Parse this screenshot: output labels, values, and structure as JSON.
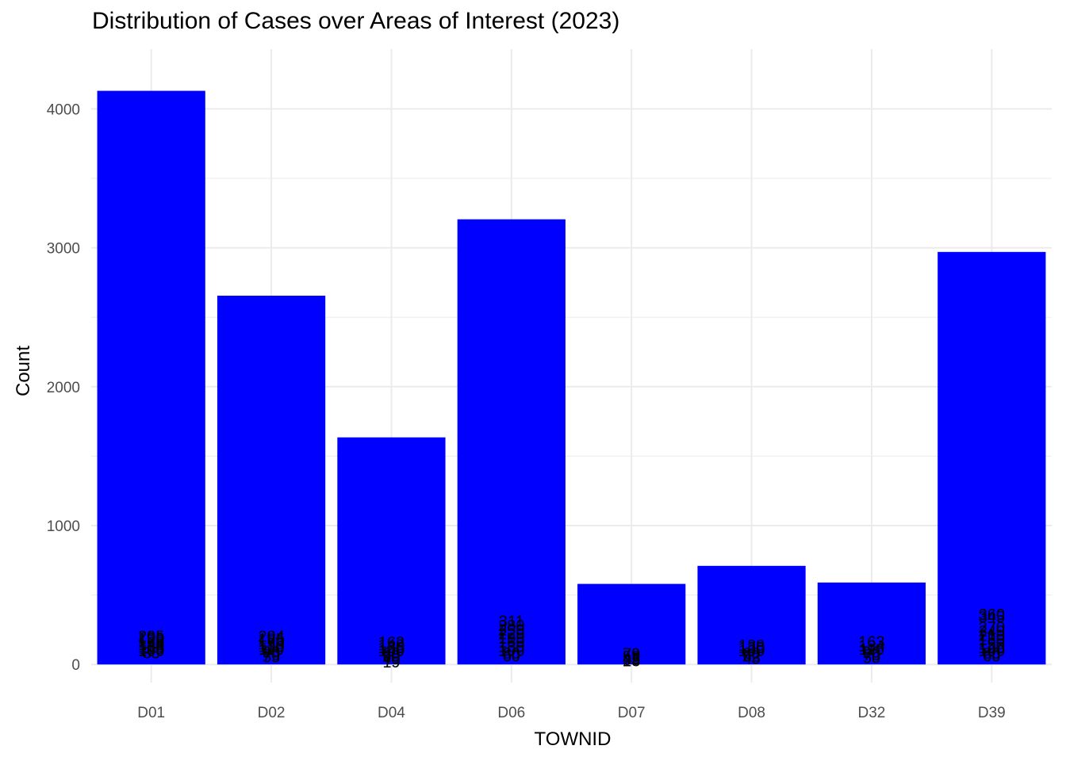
{
  "chart_data": {
    "type": "bar",
    "title": "Distribution of Cases over Areas of Interest (2023)",
    "xlabel": "TOWNID",
    "ylabel": "Count",
    "categories": [
      "D01",
      "D02",
      "D04",
      "D06",
      "D07",
      "D08",
      "D32",
      "D39"
    ],
    "values": [
      4130,
      2655,
      1635,
      3205,
      580,
      710,
      590,
      2970
    ],
    "ylim": [
      -130,
      4430
    ],
    "yticks": [
      0,
      1000,
      2000,
      3000,
      4000
    ],
    "grid": true,
    "bar_color": "#0000ff",
    "grid_color": "#ebebeb",
    "data_labels": {
      "D01": [
        "205",
        "190",
        "175",
        "160",
        "145",
        "130",
        "115",
        "100",
        "85"
      ],
      "D02": [
        "204",
        "185",
        "170",
        "150",
        "130",
        "110",
        "90",
        "70",
        "55"
      ],
      "D04": [
        "162",
        "140",
        "120",
        "100",
        "80",
        "60",
        "40",
        "19"
      ],
      "D06": [
        "311",
        "280",
        "250",
        "220",
        "190",
        "160",
        "130",
        "100",
        "80",
        "60"
      ],
      "D07": [
        "79",
        "59",
        "45",
        "35",
        "28"
      ],
      "D08": [
        "139",
        "120",
        "100",
        "80",
        "62",
        "45"
      ],
      "D32": [
        "163",
        "134",
        "110",
        "90",
        "70",
        "50"
      ],
      "D39": [
        "360",
        "345",
        "270",
        "240",
        "210",
        "180",
        "150",
        "120",
        "100",
        "80",
        "60"
      ]
    }
  }
}
